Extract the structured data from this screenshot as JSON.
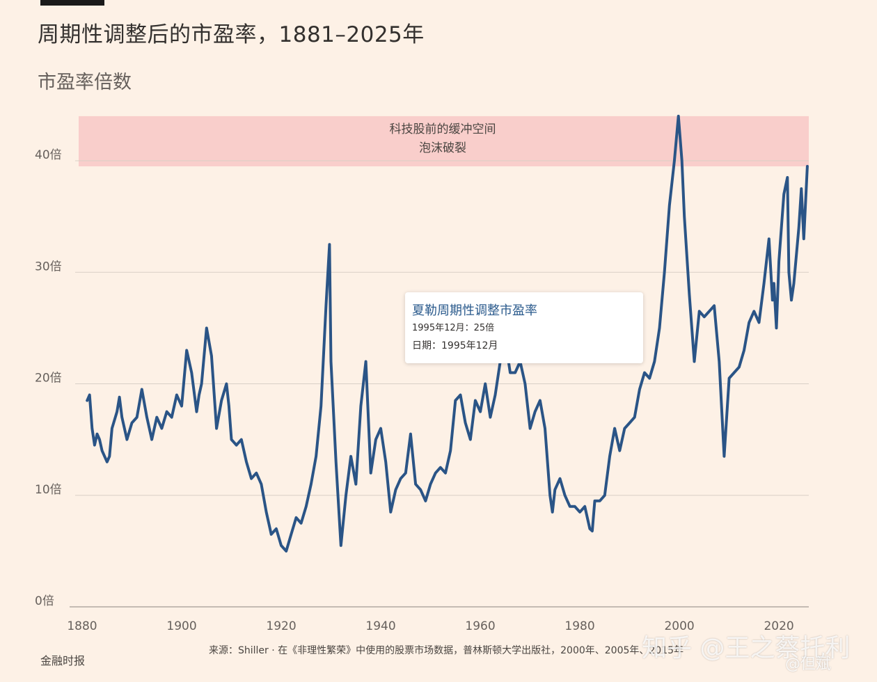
{
  "header": {
    "title": "周期性调整后的市盈率，1881–2025年",
    "subtitle": "市盈率倍数"
  },
  "band": {
    "label_line1": "科技股前的缓冲空间",
    "label_line2": "泡沫破裂",
    "from": 39.5,
    "to": 44,
    "color": "#f7c6c4"
  },
  "tooltip": {
    "title": "夏勒周期性调整市盈率",
    "value_line": "1995年12月：25倍",
    "date_line": "日期：1995年12月"
  },
  "footer": {
    "source": "来源：Shiller · 在《非理性繁荣》中使用的股票市场数据，普林斯顿大学出版社，2000年、2005年、2015年",
    "brand": "金融时报",
    "watermark": "知乎 @王之蔡托利",
    "watermark2": "@但斌"
  },
  "colors": {
    "line": "#2a5486",
    "grid": "#d9d0c6",
    "background": "#fdf1e6"
  },
  "chart_data": {
    "type": "line",
    "title": "周期性调整后的市盈率，1881–2025年",
    "ylabel": "市盈率倍数",
    "xlim": [
      1880,
      2026
    ],
    "ylim": [
      0,
      44
    ],
    "x_ticks": [
      "1880",
      "1900",
      "1920",
      "1940",
      "1960",
      "1980",
      "2000",
      "2020"
    ],
    "y_ticks": [
      {
        "value": 0,
        "label": "0倍"
      },
      {
        "value": 10,
        "label": "10倍"
      },
      {
        "value": 20,
        "label": "20倍"
      },
      {
        "value": 30,
        "label": "30倍"
      },
      {
        "value": 40,
        "label": "40倍"
      }
    ],
    "grid": true,
    "series": [
      {
        "points": [
          [
            1881,
            18.5
          ],
          [
            1881.5,
            19
          ],
          [
            1882,
            16
          ],
          [
            1882.5,
            14.5
          ],
          [
            1883,
            15.5
          ],
          [
            1883.5,
            15
          ],
          [
            1884,
            14
          ],
          [
            1885,
            13
          ],
          [
            1885.5,
            13.5
          ],
          [
            1886,
            16
          ],
          [
            1887,
            17.5
          ],
          [
            1887.5,
            18.8
          ],
          [
            1888,
            17
          ],
          [
            1889,
            15
          ],
          [
            1890,
            16.5
          ],
          [
            1891,
            17
          ],
          [
            1892,
            19.5
          ],
          [
            1893,
            17
          ],
          [
            1894,
            15
          ],
          [
            1895,
            17
          ],
          [
            1896,
            16
          ],
          [
            1897,
            17.5
          ],
          [
            1898,
            17
          ],
          [
            1899,
            19
          ],
          [
            1900,
            18
          ],
          [
            1901,
            23
          ],
          [
            1902,
            21
          ],
          [
            1903,
            17.5
          ],
          [
            1903.5,
            19
          ],
          [
            1904,
            20
          ],
          [
            1905,
            25
          ],
          [
            1906,
            22.5
          ],
          [
            1907,
            16
          ],
          [
            1908,
            18.5
          ],
          [
            1909,
            20
          ],
          [
            1909.5,
            18
          ],
          [
            1910,
            15
          ],
          [
            1911,
            14.5
          ],
          [
            1912,
            15
          ],
          [
            1913,
            13
          ],
          [
            1914,
            11.5
          ],
          [
            1915,
            12
          ],
          [
            1916,
            11
          ],
          [
            1917,
            8.5
          ],
          [
            1918,
            6.5
          ],
          [
            1919,
            7
          ],
          [
            1920,
            5.5
          ],
          [
            1921,
            5
          ],
          [
            1922,
            6.5
          ],
          [
            1923,
            8
          ],
          [
            1924,
            7.5
          ],
          [
            1925,
            9
          ],
          [
            1926,
            11
          ],
          [
            1927,
            13.5
          ],
          [
            1928,
            18
          ],
          [
            1929,
            27
          ],
          [
            1929.7,
            32.5
          ],
          [
            1930,
            22
          ],
          [
            1931,
            13
          ],
          [
            1932,
            5.5
          ],
          [
            1933,
            10
          ],
          [
            1934,
            13.5
          ],
          [
            1935,
            11
          ],
          [
            1936,
            18
          ],
          [
            1937,
            22
          ],
          [
            1938,
            12
          ],
          [
            1939,
            15
          ],
          [
            1940,
            16
          ],
          [
            1941,
            13
          ],
          [
            1942,
            8.5
          ],
          [
            1943,
            10.5
          ],
          [
            1944,
            11.5
          ],
          [
            1945,
            12
          ],
          [
            1946,
            15.5
          ],
          [
            1947,
            11
          ],
          [
            1948,
            10.5
          ],
          [
            1949,
            9.5
          ],
          [
            1950,
            11
          ],
          [
            1951,
            12
          ],
          [
            1952,
            12.5
          ],
          [
            1953,
            12
          ],
          [
            1954,
            14
          ],
          [
            1955,
            18.5
          ],
          [
            1956,
            19
          ],
          [
            1957,
            16.5
          ],
          [
            1958,
            15
          ],
          [
            1959,
            18.5
          ],
          [
            1960,
            17.5
          ],
          [
            1961,
            20
          ],
          [
            1962,
            17
          ],
          [
            1963,
            19
          ],
          [
            1964,
            22
          ],
          [
            1965,
            24
          ],
          [
            1966,
            21
          ],
          [
            1967,
            21
          ],
          [
            1968,
            22
          ],
          [
            1969,
            20
          ],
          [
            1970,
            16
          ],
          [
            1971,
            17.5
          ],
          [
            1972,
            18.5
          ],
          [
            1973,
            16
          ],
          [
            1974,
            10
          ],
          [
            1974.5,
            8.5
          ],
          [
            1975,
            10.5
          ],
          [
            1976,
            11.5
          ],
          [
            1977,
            10
          ],
          [
            1978,
            9
          ],
          [
            1979,
            9
          ],
          [
            1980,
            8.5
          ],
          [
            1981,
            9
          ],
          [
            1982,
            7
          ],
          [
            1982.5,
            6.8
          ],
          [
            1983,
            9.5
          ],
          [
            1984,
            9.5
          ],
          [
            1985,
            10
          ],
          [
            1986,
            13.5
          ],
          [
            1987,
            16
          ],
          [
            1988,
            14
          ],
          [
            1989,
            16
          ],
          [
            1990,
            16.5
          ],
          [
            1991,
            17
          ],
          [
            1992,
            19.5
          ],
          [
            1993,
            21
          ],
          [
            1994,
            20.5
          ],
          [
            1995,
            22
          ],
          [
            1996,
            25
          ],
          [
            1997,
            30
          ],
          [
            1998,
            36
          ],
          [
            1999,
            40
          ],
          [
            1999.8,
            44
          ],
          [
            2000.5,
            40
          ],
          [
            2001,
            35
          ],
          [
            2002,
            28
          ],
          [
            2003,
            22
          ],
          [
            2004,
            26.5
          ],
          [
            2005,
            26
          ],
          [
            2006,
            26.5
          ],
          [
            2007,
            27
          ],
          [
            2008,
            22
          ],
          [
            2009,
            13.5
          ],
          [
            2009.5,
            17
          ],
          [
            2010,
            20.5
          ],
          [
            2011,
            21
          ],
          [
            2012,
            21.5
          ],
          [
            2013,
            23
          ],
          [
            2014,
            25.5
          ],
          [
            2015,
            26.5
          ],
          [
            2016,
            25.5
          ],
          [
            2017,
            29
          ],
          [
            2018,
            33
          ],
          [
            2018.7,
            27.5
          ],
          [
            2019,
            29
          ],
          [
            2019.5,
            25
          ],
          [
            2020,
            31
          ],
          [
            2021,
            37
          ],
          [
            2021.7,
            38.5
          ],
          [
            2022,
            30
          ],
          [
            2022.5,
            27.5
          ],
          [
            2023,
            29
          ],
          [
            2024,
            34
          ],
          [
            2024.5,
            37.5
          ],
          [
            2025,
            33
          ],
          [
            2025.7,
            39.5
          ]
        ]
      }
    ]
  }
}
